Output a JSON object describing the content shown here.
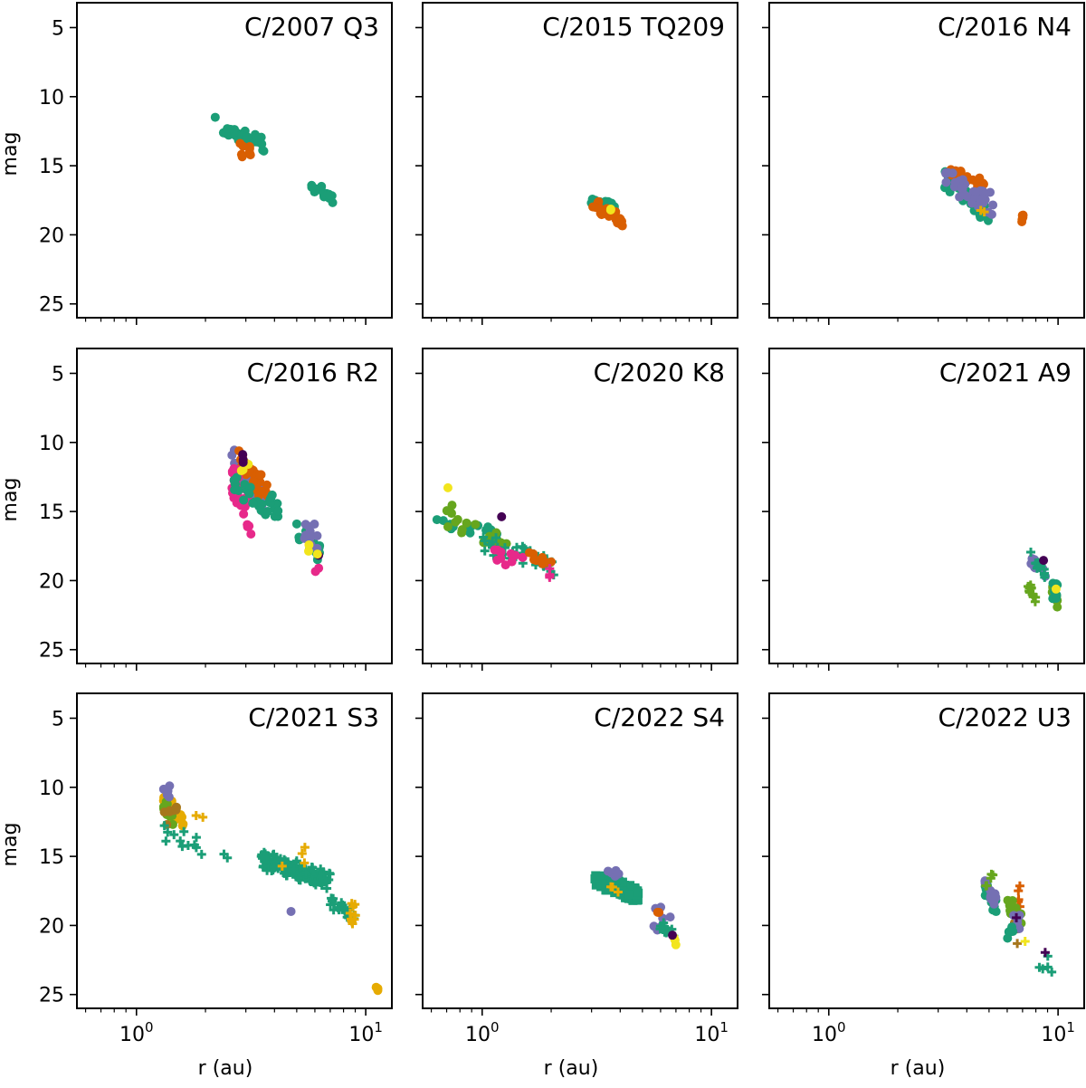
{
  "figure": {
    "xlabel": "r (au)",
    "ylabel": "mag",
    "xscale": "log",
    "xlim": [
      0.55,
      13
    ],
    "ylim": [
      26,
      3.2
    ],
    "yticks": [
      5,
      10,
      15,
      20,
      25
    ],
    "xticks": [
      {
        "base": "10",
        "exp": "0",
        "value": 1
      },
      {
        "base": "10",
        "exp": "1",
        "value": 10
      }
    ]
  },
  "palette": {
    "teal": "#1b9e77",
    "orange": "#d95f02",
    "purple": "#7570b3",
    "pink": "#e7298a",
    "green": "#66a61e",
    "yellow": "#e6ab02",
    "brown": "#a6761d",
    "lightyellow": "#f2e51d",
    "dark": "#440154",
    "gray": "#666666"
  },
  "chart_data": [
    {
      "type": "scatter",
      "title": "C/2007 Q3",
      "xlabel": "",
      "ylabel": "mag",
      "clusters": [
        {
          "color": "teal",
          "marker": "circle",
          "x": [
            2.2,
            3.6
          ],
          "y": [
            11.0,
            14.5
          ],
          "n": 30
        },
        {
          "color": "orange",
          "marker": "circle",
          "x": [
            2.8,
            3.2
          ],
          "y": [
            13.0,
            14.8
          ],
          "n": 8
        },
        {
          "color": "teal",
          "marker": "circle",
          "x": [
            5.8,
            7.5
          ],
          "y": [
            16.0,
            17.9
          ],
          "n": 18
        }
      ]
    },
    {
      "type": "scatter",
      "title": "C/2015 TQ209",
      "xlabel": "",
      "ylabel": "",
      "clusters": [
        {
          "color": "teal",
          "marker": "circle",
          "x": [
            2.8,
            3.8
          ],
          "y": [
            16.8,
            18.6
          ],
          "n": 20
        },
        {
          "color": "orange",
          "marker": "circle",
          "x": [
            3.0,
            4.1
          ],
          "y": [
            17.2,
            19.6
          ],
          "n": 25
        },
        {
          "color": "lightyellow",
          "marker": "circle",
          "x": [
            3.5,
            3.7
          ],
          "y": [
            18.0,
            18.4
          ],
          "n": 2
        }
      ]
    },
    {
      "type": "scatter",
      "title": "C/2016 N4",
      "xlabel": "",
      "ylabel": "",
      "clusters": [
        {
          "color": "teal",
          "marker": "circle",
          "x": [
            3.2,
            5.0
          ],
          "y": [
            15.0,
            19.5
          ],
          "n": 30
        },
        {
          "color": "orange",
          "marker": "circle",
          "x": [
            3.4,
            4.8
          ],
          "y": [
            14.8,
            17.0
          ],
          "n": 20
        },
        {
          "color": "purple",
          "marker": "circle",
          "x": [
            3.2,
            5.2
          ],
          "y": [
            14.8,
            19.0
          ],
          "n": 35
        },
        {
          "color": "orange",
          "marker": "circle",
          "x": [
            6.9,
            7.1
          ],
          "y": [
            18.3,
            19.3
          ],
          "n": 5
        },
        {
          "color": "yellow",
          "marker": "plus",
          "x": [
            4.6,
            4.8
          ],
          "y": [
            18.0,
            18.5
          ],
          "n": 2
        }
      ]
    },
    {
      "type": "scatter",
      "title": "C/2016 R2",
      "xlabel": "",
      "ylabel": "mag",
      "clusters": [
        {
          "color": "purple",
          "marker": "circle",
          "x": [
            2.6,
            3.6
          ],
          "y": [
            10.0,
            15.5
          ],
          "n": 40
        },
        {
          "color": "orange",
          "marker": "circle",
          "x": [
            2.8,
            3.8
          ],
          "y": [
            10.5,
            15.0
          ],
          "n": 30
        },
        {
          "color": "pink",
          "marker": "circle",
          "x": [
            2.6,
            3.2
          ],
          "y": [
            11.0,
            17.2
          ],
          "n": 30
        },
        {
          "color": "teal",
          "marker": "circle",
          "x": [
            2.6,
            4.2
          ],
          "y": [
            12.0,
            16.0
          ],
          "n": 30
        },
        {
          "color": "lightyellow",
          "marker": "circle",
          "x": [
            2.8,
            3.1
          ],
          "y": [
            10.5,
            12.5
          ],
          "n": 6
        },
        {
          "color": "dark",
          "marker": "circle",
          "x": [
            2.9,
            3.0
          ],
          "y": [
            10.0,
            12.0
          ],
          "n": 3
        },
        {
          "color": "teal",
          "marker": "circle",
          "x": [
            5.0,
            6.4
          ],
          "y": [
            15.5,
            19.2
          ],
          "n": 18
        },
        {
          "color": "purple",
          "marker": "circle",
          "x": [
            5.2,
            6.2
          ],
          "y": [
            15.5,
            18.0
          ],
          "n": 10
        },
        {
          "color": "pink",
          "marker": "circle",
          "x": [
            6.0,
            6.3
          ],
          "y": [
            19.0,
            19.5
          ],
          "n": 2
        },
        {
          "color": "dark",
          "marker": "circle",
          "x": [
            6.2,
            6.3
          ],
          "y": [
            18.0,
            18.2
          ],
          "n": 1
        },
        {
          "color": "lightyellow",
          "marker": "circle",
          "x": [
            5.6,
            6.3
          ],
          "y": [
            17.0,
            18.8
          ],
          "n": 3
        }
      ]
    },
    {
      "type": "scatter",
      "title": "C/2020 K8",
      "xlabel": "",
      "ylabel": "",
      "clusters": [
        {
          "color": "teal",
          "marker": "circle",
          "x": [
            0.6,
            1.2
          ],
          "y": [
            15.3,
            17.0
          ],
          "n": 15
        },
        {
          "color": "green",
          "marker": "circle",
          "x": [
            0.7,
            1.3
          ],
          "y": [
            14.2,
            18.8
          ],
          "n": 20
        },
        {
          "color": "teal",
          "marker": "plus",
          "x": [
            1.0,
            2.1
          ],
          "y": [
            16.5,
            19.8
          ],
          "n": 40
        },
        {
          "color": "pink",
          "marker": "circle",
          "x": [
            1.1,
            1.8
          ],
          "y": [
            17.5,
            19.0
          ],
          "n": 10
        },
        {
          "color": "orange",
          "marker": "circle",
          "x": [
            1.5,
            2.0
          ],
          "y": [
            17.8,
            19.0
          ],
          "n": 8
        },
        {
          "color": "pink",
          "marker": "plus",
          "x": [
            1.9,
            2.0
          ],
          "y": [
            19.0,
            20.2
          ],
          "n": 4
        },
        {
          "color": "lightyellow",
          "marker": "circle",
          "x": [
            0.7,
            0.72
          ],
          "y": [
            13.2,
            13.3
          ],
          "n": 1
        },
        {
          "color": "dark",
          "marker": "circle",
          "x": [
            1.2,
            1.22
          ],
          "y": [
            15.3,
            15.4
          ],
          "n": 1
        }
      ]
    },
    {
      "type": "scatter",
      "title": "C/2021 A9",
      "xlabel": "",
      "ylabel": "",
      "clusters": [
        {
          "color": "purple",
          "marker": "circle",
          "x": [
            7.6,
            8.8
          ],
          "y": [
            18.0,
            20.0
          ],
          "n": 15
        },
        {
          "color": "teal",
          "marker": "plus",
          "x": [
            7.6,
            9.0
          ],
          "y": [
            17.8,
            20.0
          ],
          "n": 15
        },
        {
          "color": "green",
          "marker": "plus",
          "x": [
            7.4,
            8.0
          ],
          "y": [
            20.0,
            21.8
          ],
          "n": 12
        },
        {
          "color": "green",
          "marker": "circle",
          "x": [
            9.4,
            10.0
          ],
          "y": [
            20.0,
            22.5
          ],
          "n": 12
        },
        {
          "color": "teal",
          "marker": "circle",
          "x": [
            9.4,
            10.0
          ],
          "y": [
            20.0,
            21.5
          ],
          "n": 8
        },
        {
          "color": "lightyellow",
          "marker": "circle",
          "x": [
            9.6,
            9.8
          ],
          "y": [
            20.4,
            20.7
          ],
          "n": 1
        },
        {
          "color": "dark",
          "marker": "circle",
          "x": [
            8.5,
            8.7
          ],
          "y": [
            18.4,
            18.6
          ],
          "n": 1
        }
      ]
    },
    {
      "type": "scatter",
      "title": "C/2021 S3",
      "xlabel": "r (au)",
      "ylabel": "mag",
      "clusters": [
        {
          "color": "yellow",
          "marker": "circle",
          "x": [
            1.3,
            1.6
          ],
          "y": [
            10.0,
            13.5
          ],
          "n": 20
        },
        {
          "color": "green",
          "marker": "circle",
          "x": [
            1.3,
            1.45
          ],
          "y": [
            10.5,
            13.0
          ],
          "n": 12
        },
        {
          "color": "brown",
          "marker": "circle",
          "x": [
            1.3,
            1.5
          ],
          "y": [
            11.0,
            13.0
          ],
          "n": 8
        },
        {
          "color": "purple",
          "marker": "circle",
          "x": [
            1.3,
            1.4
          ],
          "y": [
            9.8,
            11.0
          ],
          "n": 6
        },
        {
          "color": "teal",
          "marker": "plus",
          "x": [
            1.3,
            2.6
          ],
          "y": [
            12.5,
            15.8
          ],
          "n": 14
        },
        {
          "color": "yellow",
          "marker": "plus",
          "x": [
            1.8,
            2.1
          ],
          "y": [
            12.0,
            12.5
          ],
          "n": 2
        },
        {
          "color": "teal",
          "marker": "plus",
          "x": [
            3.5,
            7.0
          ],
          "y": [
            14.5,
            17.5
          ],
          "n": 160
        },
        {
          "color": "yellow",
          "marker": "plus",
          "x": [
            4.2,
            5.8
          ],
          "y": [
            14.3,
            16.6
          ],
          "n": 4
        },
        {
          "color": "teal",
          "marker": "plus",
          "x": [
            7.0,
            9.0
          ],
          "y": [
            17.5,
            20.0
          ],
          "n": 25
        },
        {
          "color": "yellow",
          "marker": "plus",
          "x": [
            8.5,
            9.1
          ],
          "y": [
            18.2,
            20.0
          ],
          "n": 10
        },
        {
          "color": "purple",
          "marker": "circle",
          "x": [
            4.7,
            4.8
          ],
          "y": [
            18.9,
            19.1
          ],
          "n": 1
        },
        {
          "color": "yellow",
          "marker": "circle",
          "x": [
            11.0,
            11.3
          ],
          "y": [
            24.4,
            24.8
          ],
          "n": 3
        }
      ]
    },
    {
      "type": "scatter",
      "title": "C/2022 S4",
      "xlabel": "r (au)",
      "ylabel": "",
      "clusters": [
        {
          "color": "teal",
          "marker": "square",
          "x": [
            3.1,
            4.8
          ],
          "y": [
            16.0,
            18.4
          ],
          "n": 150
        },
        {
          "color": "purple",
          "marker": "circle",
          "x": [
            3.3,
            4.2
          ],
          "y": [
            16.0,
            16.5
          ],
          "n": 6
        },
        {
          "color": "yellow",
          "marker": "plus",
          "x": [
            3.6,
            4.3
          ],
          "y": [
            16.8,
            18.0
          ],
          "n": 3
        },
        {
          "color": "purple",
          "marker": "circle",
          "x": [
            5.5,
            6.8
          ],
          "y": [
            18.5,
            20.5
          ],
          "n": 8
        },
        {
          "color": "teal",
          "marker": "plus",
          "x": [
            5.8,
            7.0
          ],
          "y": [
            19.0,
            21.5
          ],
          "n": 15
        },
        {
          "color": "orange",
          "marker": "circle",
          "x": [
            5.8,
            6.0
          ],
          "y": [
            19.0,
            19.3
          ],
          "n": 2
        },
        {
          "color": "lightyellow",
          "marker": "circle",
          "x": [
            6.8,
            7.0
          ],
          "y": [
            20.8,
            21.5
          ],
          "n": 3
        },
        {
          "color": "dark",
          "marker": "circle",
          "x": [
            6.6,
            6.8
          ],
          "y": [
            20.6,
            20.8
          ],
          "n": 1
        }
      ]
    },
    {
      "type": "scatter",
      "title": "C/2022 U3",
      "xlabel": "r (au)",
      "ylabel": "",
      "clusters": [
        {
          "color": "teal",
          "marker": "circle",
          "x": [
            4.8,
            5.4
          ],
          "y": [
            16.5,
            19.5
          ],
          "n": 25
        },
        {
          "color": "purple",
          "marker": "circle",
          "x": [
            4.8,
            5.4
          ],
          "y": [
            16.5,
            19.0
          ],
          "n": 15
        },
        {
          "color": "green",
          "marker": "plus",
          "x": [
            4.8,
            5.2
          ],
          "y": [
            16.0,
            17.5
          ],
          "n": 5
        },
        {
          "color": "orange",
          "marker": "plus",
          "x": [
            6.5,
            6.9
          ],
          "y": [
            16.8,
            19.0
          ],
          "n": 6
        },
        {
          "color": "green",
          "marker": "circle",
          "x": [
            6.0,
            7.0
          ],
          "y": [
            17.5,
            20.5
          ],
          "n": 15
        },
        {
          "color": "brown",
          "marker": "plus",
          "x": [
            6.4,
            6.8
          ],
          "y": [
            19.0,
            22.0
          ],
          "n": 5
        },
        {
          "color": "purple",
          "marker": "circle",
          "x": [
            6.2,
            7.2
          ],
          "y": [
            19.0,
            20.5
          ],
          "n": 8
        },
        {
          "color": "teal",
          "marker": "circle",
          "x": [
            6.0,
            6.6
          ],
          "y": [
            20.0,
            21.0
          ],
          "n": 5
        },
        {
          "color": "lightyellow",
          "marker": "plus",
          "x": [
            7.1,
            7.3
          ],
          "y": [
            21.1,
            21.4
          ],
          "n": 1
        },
        {
          "color": "dark",
          "marker": "plus",
          "x": [
            6.5,
            6.7
          ],
          "y": [
            19.3,
            19.5
          ],
          "n": 1
        },
        {
          "color": "teal",
          "marker": "plus",
          "x": [
            8.0,
            9.6
          ],
          "y": [
            21.2,
            23.8
          ],
          "n": 5
        },
        {
          "color": "dark",
          "marker": "plus",
          "x": [
            8.7,
            8.9
          ],
          "y": [
            21.9,
            22.1
          ],
          "n": 1
        }
      ]
    }
  ]
}
